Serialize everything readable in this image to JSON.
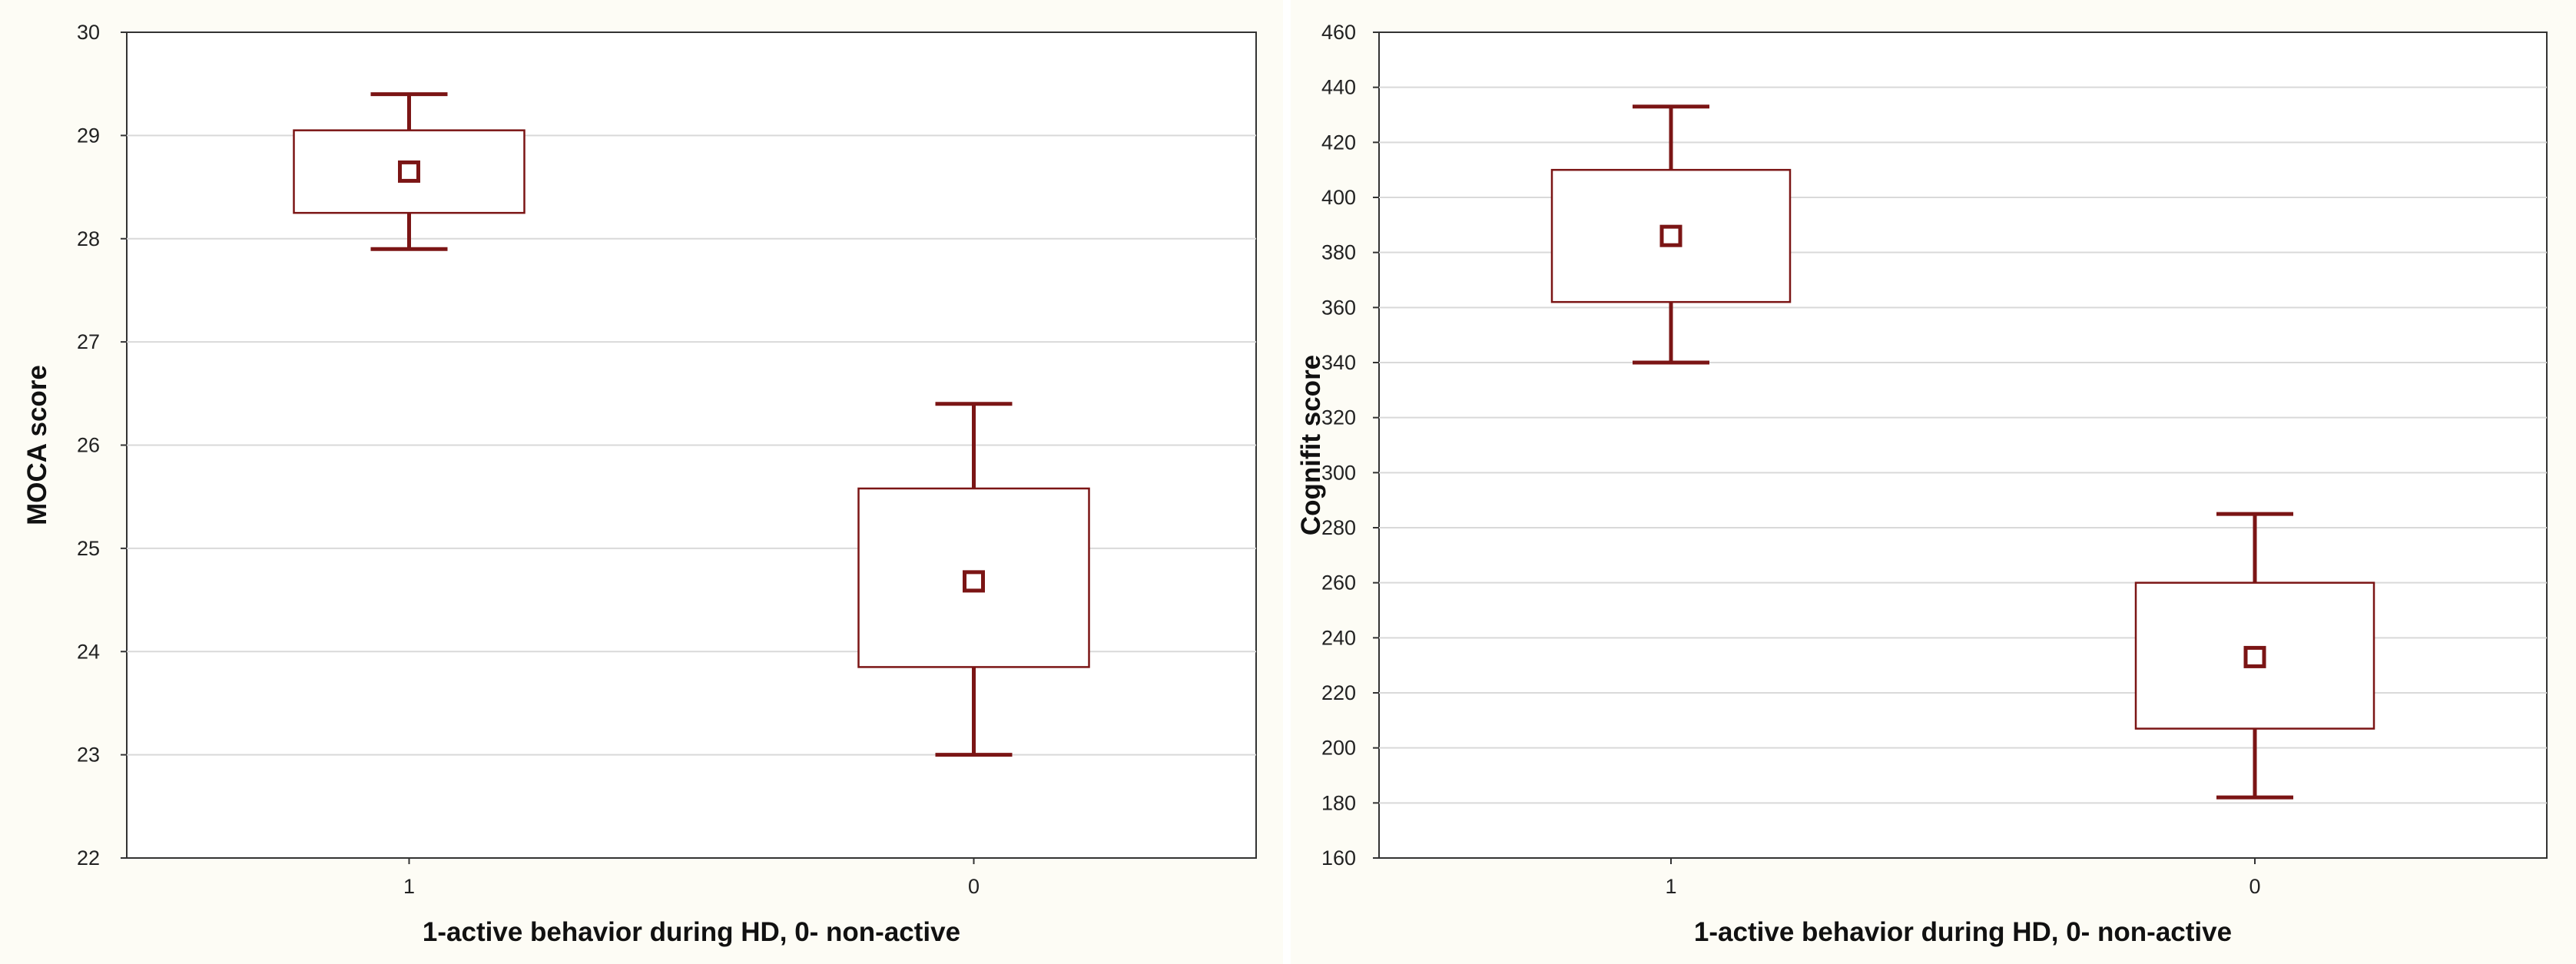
{
  "chart_data": [
    {
      "type": "box",
      "title": "",
      "xlabel": "1-active behavior during HD, 0- non-active",
      "ylabel": "MOCA score",
      "ylim": [
        22,
        30
      ],
      "yticks": [
        22,
        23,
        24,
        25,
        26,
        27,
        28,
        29,
        30
      ],
      "grid": true,
      "color": "#7b1515",
      "categories": [
        "1",
        "0"
      ],
      "series": [
        {
          "category": "1",
          "mean": 28.65,
          "box_low": 28.25,
          "box_high": 29.05,
          "whisker_low": 27.9,
          "whisker_high": 29.4
        },
        {
          "category": "0",
          "mean": 24.68,
          "box_low": 23.85,
          "box_high": 25.58,
          "whisker_low": 23.0,
          "whisker_high": 26.4
        }
      ]
    },
    {
      "type": "box",
      "title": "",
      "xlabel": "1-active behavior during HD, 0- non-active",
      "ylabel": "Cognifit score",
      "ylim": [
        160,
        460
      ],
      "yticks": [
        160,
        180,
        200,
        220,
        240,
        260,
        280,
        300,
        320,
        340,
        360,
        380,
        400,
        420,
        440,
        460
      ],
      "grid": true,
      "color": "#7b1515",
      "categories": [
        "1",
        "0"
      ],
      "series": [
        {
          "category": "1",
          "mean": 386,
          "box_low": 362,
          "box_high": 410,
          "whisker_low": 340,
          "whisker_high": 433
        },
        {
          "category": "0",
          "mean": 233,
          "box_low": 207,
          "box_high": 260,
          "whisker_low": 182,
          "whisker_high": 285
        }
      ]
    }
  ]
}
